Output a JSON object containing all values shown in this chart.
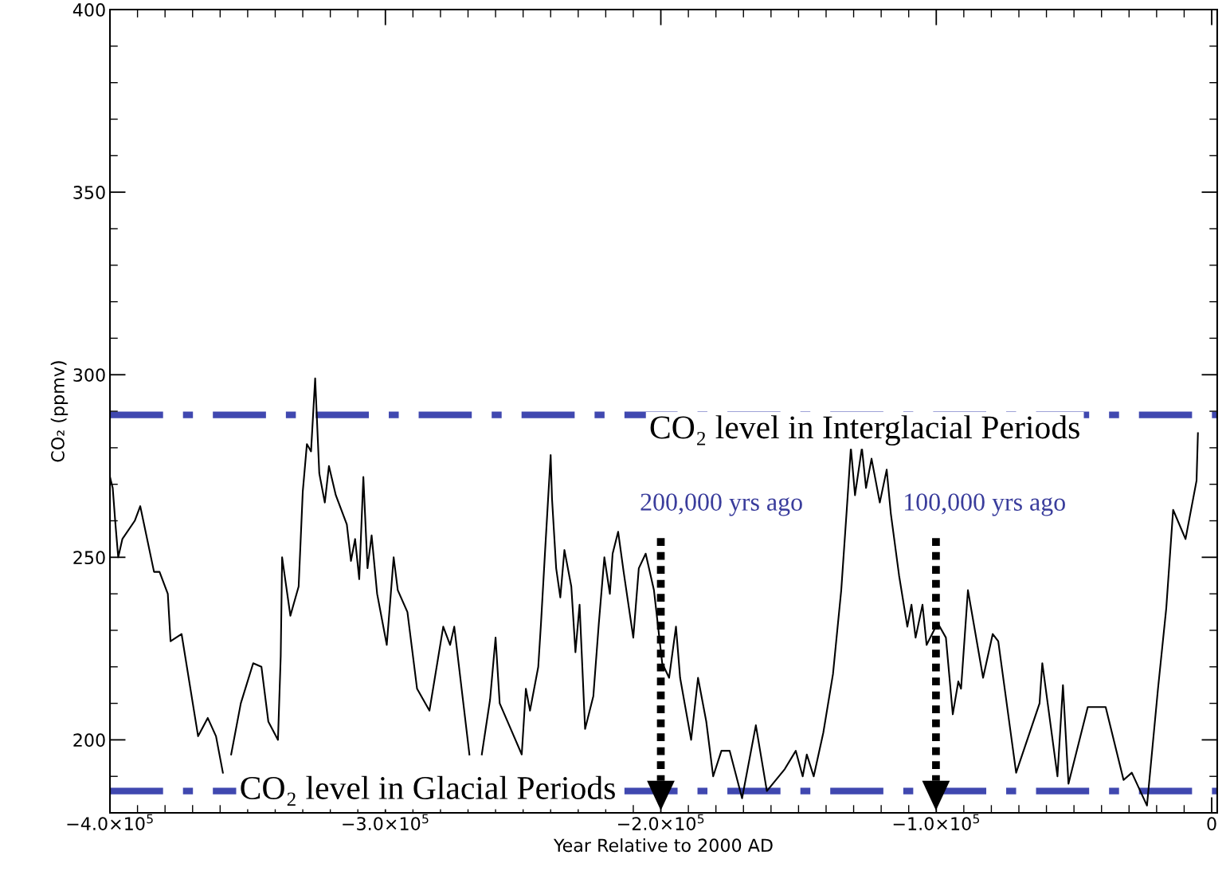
{
  "chart_data": {
    "type": "line",
    "xlabel": "Year Relative to 2000 AD",
    "ylabel": "CO₂ (ppmv)",
    "xlim": [
      -400000,
      2000
    ],
    "ylim": [
      180,
      400
    ],
    "xticks": [
      {
        "value": -400000,
        "label": "−4.0×10$^{5}$"
      },
      {
        "value": -300000,
        "label": "−3.0×10$^{5}$"
      },
      {
        "value": -200000,
        "label": "−2.0×10$^{5}$"
      },
      {
        "value": -100000,
        "label": "−1.0×10$^{5}$"
      },
      0
    ],
    "yticks": [
      200,
      250,
      300,
      350,
      400
    ],
    "grid": false,
    "marker": "none",
    "line_style": "solid",
    "x": [
      -400000,
      -399000,
      -398000,
      -397000,
      -395500,
      -391000,
      -389000,
      -384000,
      -382000,
      -379000,
      -378000,
      -374000,
      -368000,
      -364500,
      -361500,
      -359000,
      -357000,
      -356000,
      -352500,
      -348000,
      -345000,
      -342500,
      -339000,
      -338000,
      -337500,
      -334500,
      -331500,
      -330000,
      -328500,
      -327000,
      -325500,
      -324000,
      -322000,
      -320500,
      -318000,
      -314000,
      -312500,
      -311000,
      -309500,
      -308000,
      -306500,
      -305000,
      -303000,
      -299500,
      -297000,
      -295500,
      -292000,
      -288500,
      -284000,
      -279000,
      -276500,
      -275000,
      -269500,
      -267000,
      -265000,
      -262000,
      -260000,
      -258500,
      -254500,
      -250500,
      -249000,
      -247500,
      -244500,
      -243500,
      -242000,
      -240000,
      -239500,
      -238000,
      -236500,
      -235000,
      -232500,
      -231000,
      -229500,
      -227500,
      -224500,
      -222500,
      -220500,
      -218500,
      -217500,
      -215500,
      -213500,
      -210000,
      -208000,
      -205500,
      -202500,
      -199500,
      -197000,
      -194500,
      -193000,
      -189000,
      -186500,
      -183500,
      -181000,
      -178000,
      -175000,
      -170500,
      -165500,
      -161500,
      -155000,
      -151000,
      -148500,
      -147000,
      -144500,
      -141000,
      -137500,
      -134500,
      -132500,
      -131000,
      -129500,
      -127000,
      -125500,
      -123500,
      -120500,
      -118000,
      -116500,
      -113500,
      -110500,
      -109000,
      -107500,
      -105000,
      -103500,
      -99500,
      -96500,
      -94000,
      -92000,
      -91000,
      -88500,
      -83000,
      -79500,
      -77500,
      -71000,
      -62500,
      -61500,
      -56000,
      -54000,
      -52000,
      -45000,
      -38500,
      -32000,
      -29000,
      -23500,
      -19500,
      -16500,
      -14000,
      -9500,
      -5500,
      -5000
    ],
    "series": [
      {
        "color": "#000000",
        "values": [
          272,
          269,
          259,
          250,
          255,
          260,
          264,
          246,
          246,
          240,
          227,
          229,
          201,
          206,
          201,
          191,
          null,
          196,
          210,
          221,
          220,
          205,
          200,
          223,
          250,
          234,
          242,
          268,
          281,
          279,
          299,
          273,
          265,
          275,
          267,
          259,
          249,
          255,
          244,
          272,
          247,
          256,
          240,
          226,
          250,
          241,
          235,
          214,
          208,
          231,
          226,
          231,
          196,
          null,
          196,
          211,
          228,
          210,
          203,
          196,
          214,
          208,
          220,
          232,
          252,
          278,
          266,
          247,
          239,
          252,
          242,
          224,
          237,
          203,
          212,
          232,
          250,
          240,
          251,
          257,
          246,
          228,
          247,
          251,
          241,
          221,
          217,
          231,
          217,
          200,
          217,
          205,
          190,
          197,
          197,
          184,
          204,
          186,
          192,
          197,
          190,
          196,
          190,
          202,
          218,
          241,
          263,
          280,
          267,
          280,
          269,
          277,
          265,
          274,
          262,
          245,
          231,
          237,
          228,
          237,
          226,
          232,
          228,
          207,
          216,
          214,
          241,
          217,
          229,
          227,
          191,
          210,
          221,
          190,
          215,
          188,
          209,
          209,
          189,
          191,
          182,
          214,
          236,
          263,
          255,
          271,
          284
        ]
      }
    ],
    "ref_lines": [
      {
        "axis": "y",
        "value": 289,
        "label": "CO₂ level in Interglacial Periods",
        "color": "#4048b0",
        "line_style": "dashdot"
      },
      {
        "axis": "y",
        "value": 186,
        "label": "CO₂ level in Glacial Periods",
        "color": "#4048b0",
        "line_style": "dashdot"
      }
    ],
    "annotations": [
      "200,000 yrs ago",
      "100,000 yrs ago"
    ]
  }
}
